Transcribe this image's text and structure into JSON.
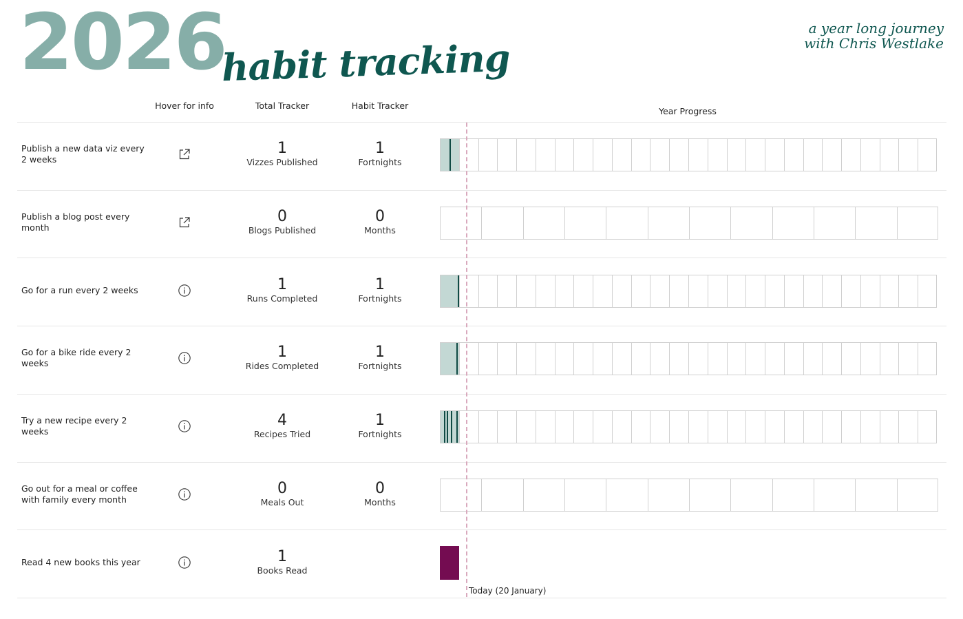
{
  "header": {
    "year": "2026",
    "title": "habit tracking",
    "tagline_line1": "a year long journey",
    "tagline_line2": "with Chris Westlake"
  },
  "columns": {
    "info": "Hover for info",
    "total": "Total Tracker",
    "habit": "Habit Tracker",
    "progress": "Year Progress"
  },
  "today": {
    "label": "Today (20 January)",
    "day_of_year": 20,
    "days_in_year": 365
  },
  "colors": {
    "brand_light": "#86aea8",
    "brand_dark": "#0f5750",
    "progress_fill": "#c3d8d4",
    "tick": "#0f4a44",
    "today_line": "#d9a9bd",
    "books_bar": "#740c51"
  },
  "habits": [
    {
      "label": "Publish a new data viz every 2 weeks",
      "icon": "external-link-icon",
      "total": "1",
      "total_unit": "Vizzes Published",
      "habit": "1",
      "habit_unit": "Fortnights",
      "periods": 26,
      "completed_periods": 1,
      "event_days": [
        7
      ]
    },
    {
      "label": "Publish a blog post every month",
      "icon": "external-link-icon",
      "total": "0",
      "total_unit": "Blogs Published",
      "habit": "0",
      "habit_unit": "Months",
      "periods": 12,
      "completed_periods": 0,
      "event_days": []
    },
    {
      "label": "Go for a run every 2 weeks",
      "icon": "info-icon",
      "total": "1",
      "total_unit": "Runs Completed",
      "habit": "1",
      "habit_unit": "Fortnights",
      "periods": 26,
      "completed_periods": 1,
      "event_days": [
        13
      ]
    },
    {
      "label": "Go for a bike ride every 2 weeks",
      "icon": "info-icon",
      "total": "1",
      "total_unit": "Rides Completed",
      "habit": "1",
      "habit_unit": "Fortnights",
      "periods": 26,
      "completed_periods": 1,
      "event_days": [
        12
      ]
    },
    {
      "label": "Try a new recipe every 2 weeks",
      "icon": "info-icon",
      "total": "4",
      "total_unit": "Recipes Tried",
      "habit": "1",
      "habit_unit": "Fortnights",
      "periods": 26,
      "completed_periods": 1,
      "event_days": [
        3,
        5,
        8,
        12
      ]
    },
    {
      "label": "Go out for a meal or coffee with family every month",
      "icon": "info-icon",
      "total": "0",
      "total_unit": "Meals Out",
      "habit": "0",
      "habit_unit": "Months",
      "periods": 12,
      "completed_periods": 0,
      "event_days": []
    },
    {
      "label": "Read 4 new books this year",
      "icon": "info-icon",
      "total": "1",
      "total_unit": "Books Read",
      "habit": "",
      "habit_unit": "",
      "periods": 0,
      "completed_periods": 0,
      "event_days": []
    }
  ]
}
